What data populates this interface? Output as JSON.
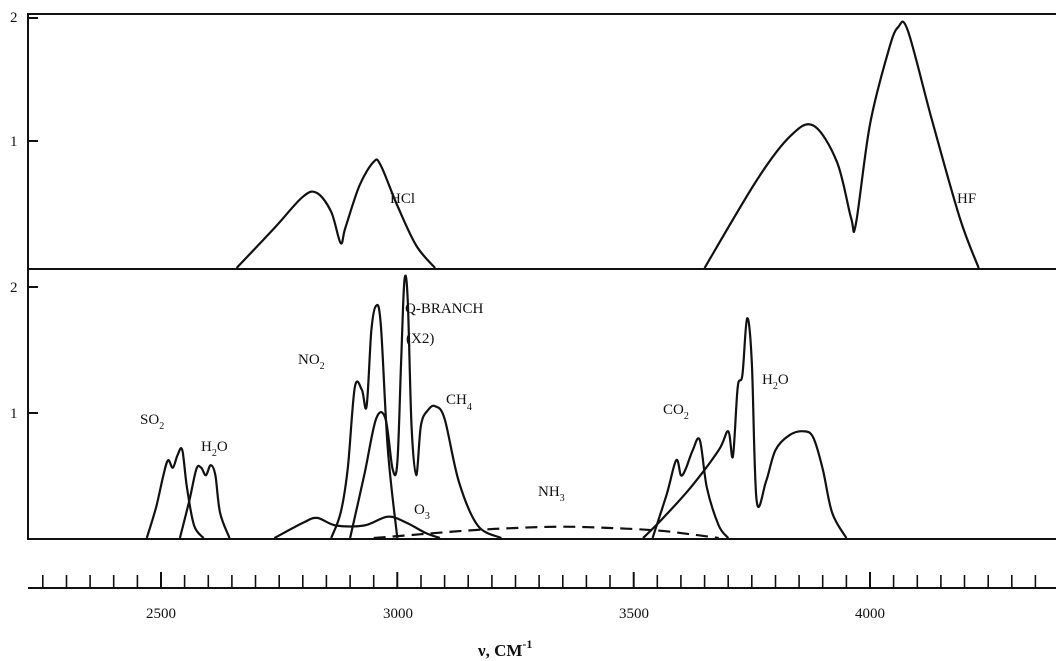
{
  "chart_data": [
    {
      "type": "line",
      "panel": "upper",
      "x_range": [
        2250,
        4360
      ],
      "y_range": [
        0,
        2
      ],
      "y_ticks": [
        "1",
        "2"
      ],
      "series": [
        {
          "name": "HCl",
          "label": "HCl",
          "x": [
            2660,
            2740,
            2800,
            2830,
            2860,
            2880,
            2890,
            2920,
            2950,
            2965,
            3000,
            3040,
            3080
          ],
          "y": [
            0.0,
            0.32,
            0.57,
            0.6,
            0.45,
            0.2,
            0.32,
            0.66,
            0.85,
            0.82,
            0.5,
            0.18,
            0.0
          ]
        },
        {
          "name": "HF",
          "label": "HF",
          "x": [
            3650,
            3760,
            3830,
            3880,
            3930,
            3960,
            3970,
            4000,
            4040,
            4060,
            4080,
            4130,
            4190,
            4230
          ],
          "y": [
            0.0,
            0.7,
            1.05,
            1.14,
            0.85,
            0.4,
            0.35,
            1.15,
            1.75,
            1.93,
            1.9,
            1.2,
            0.4,
            0.0
          ]
        }
      ]
    },
    {
      "type": "line",
      "panel": "lower",
      "x_range": [
        2250,
        4360
      ],
      "y_range": [
        0,
        2
      ],
      "y_ticks": [
        "1",
        "2"
      ],
      "x_ticks": [
        2500,
        3000,
        3500,
        4000
      ],
      "x_tick_labels": [
        "2500",
        "3000",
        "3500",
        "4000"
      ],
      "xlabel": "ν, CM",
      "xlabel_superscript": "-1",
      "annotations": [
        "Q-BRANCH",
        "(X2)"
      ],
      "series": [
        {
          "name": "SO2",
          "label": "SO",
          "label_sub": "2",
          "x": [
            2470,
            2490,
            2505,
            2515,
            2525,
            2535,
            2545,
            2555,
            2570,
            2590
          ],
          "y": [
            0.0,
            0.25,
            0.5,
            0.62,
            0.56,
            0.66,
            0.7,
            0.4,
            0.1,
            0.0
          ]
        },
        {
          "name": "H2O (2600)",
          "label": "H",
          "label_sub": "2",
          "label_end": "O",
          "x": [
            2540,
            2560,
            2575,
            2585,
            2595,
            2605,
            2615,
            2625,
            2645
          ],
          "y": [
            0.0,
            0.3,
            0.55,
            0.56,
            0.5,
            0.58,
            0.5,
            0.2,
            0.0
          ]
        },
        {
          "name": "NO2",
          "label": "NO",
          "label_sub": "2",
          "x": [
            2860,
            2880,
            2895,
            2910,
            2925,
            2935,
            2945,
            2955,
            2965,
            2980,
            3000
          ],
          "y": [
            0.0,
            0.2,
            0.55,
            1.2,
            1.18,
            1.05,
            1.65,
            1.85,
            1.7,
            0.7,
            0.0
          ]
        },
        {
          "name": "CH4",
          "label": "CH",
          "label_sub": "4",
          "x": [
            2900,
            2930,
            2955,
            2975,
            2990,
            3000,
            3008,
            3015,
            3022,
            3030,
            3040,
            3050,
            3065,
            3080,
            3100,
            3130,
            3170,
            3220
          ],
          "y": [
            0.0,
            0.5,
            0.95,
            0.95,
            0.55,
            0.6,
            1.4,
            2.05,
            1.9,
            0.9,
            0.5,
            0.9,
            1.02,
            1.05,
            0.95,
            0.45,
            0.1,
            0.0
          ]
        },
        {
          "name": "O3",
          "label": "O",
          "label_sub": "3",
          "x": [
            2740,
            2800,
            2830,
            2870,
            2930,
            2980,
            3020,
            3060,
            3090
          ],
          "y": [
            0.0,
            0.12,
            0.16,
            0.1,
            0.1,
            0.17,
            0.12,
            0.04,
            0.0
          ]
        },
        {
          "name": "NH3",
          "label": "NH",
          "label_sub": "3",
          "dashed": true,
          "x": [
            2950,
            3050,
            3150,
            3250,
            3350,
            3450,
            3550,
            3620,
            3680
          ],
          "y": [
            0.0,
            0.03,
            0.06,
            0.08,
            0.09,
            0.08,
            0.06,
            0.03,
            0.0
          ]
        },
        {
          "name": "CO2",
          "label": "CO",
          "label_sub": "2",
          "x": [
            3540,
            3570,
            3590,
            3600,
            3610,
            3625,
            3640,
            3655,
            3680,
            3700
          ],
          "y": [
            0.0,
            0.35,
            0.62,
            0.5,
            0.55,
            0.7,
            0.78,
            0.4,
            0.1,
            0.0
          ]
        },
        {
          "name": "H2O (3750)",
          "label": "H",
          "label_sub": "2",
          "label_end": "O",
          "x": [
            3520,
            3560,
            3620,
            3680,
            3700,
            3710,
            3720,
            3730,
            3740,
            3750,
            3760,
            3780,
            3800,
            3830,
            3860,
            3880,
            3900,
            3920,
            3950
          ],
          "y": [
            0.0,
            0.15,
            0.4,
            0.7,
            0.85,
            0.65,
            1.2,
            1.3,
            1.75,
            1.4,
            0.3,
            0.45,
            0.7,
            0.82,
            0.85,
            0.8,
            0.55,
            0.2,
            0.0
          ]
        }
      ]
    }
  ]
}
